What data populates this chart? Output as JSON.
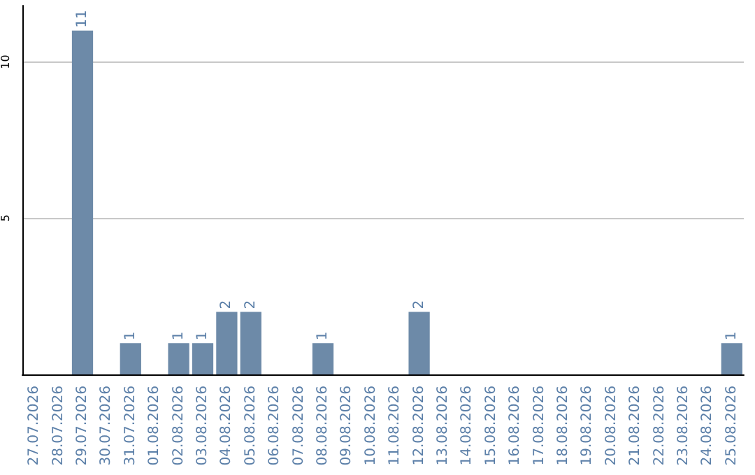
{
  "chart_data": {
    "type": "bar",
    "categories": [
      "27.07.2026",
      "28.07.2026",
      "29.07.2026",
      "30.07.2026",
      "31.07.2026",
      "01.08.2026",
      "02.08.2026",
      "03.08.2026",
      "04.08.2026",
      "05.08.2026",
      "06.08.2026",
      "07.08.2026",
      "08.08.2026",
      "09.08.2026",
      "10.08.2026",
      "11.08.2026",
      "12.08.2026",
      "13.08.2026",
      "14.08.2026",
      "15.08.2026",
      "16.08.2026",
      "17.08.2026",
      "18.08.2026",
      "19.08.2026",
      "20.08.2026",
      "21.08.2026",
      "22.08.2026",
      "23.08.2026",
      "24.08.2026",
      "25.08.2026"
    ],
    "values": [
      0,
      0,
      11,
      0,
      1,
      0,
      1,
      1,
      2,
      2,
      0,
      0,
      1,
      0,
      0,
      0,
      2,
      0,
      0,
      0,
      0,
      0,
      0,
      0,
      0,
      0,
      0,
      0,
      0,
      1
    ],
    "value_labels": [
      null,
      null,
      "11",
      null,
      "1",
      null,
      "1",
      "1",
      "2",
      "2",
      null,
      null,
      "1",
      null,
      null,
      null,
      "2",
      null,
      null,
      null,
      null,
      null,
      null,
      null,
      null,
      null,
      null,
      null,
      null,
      "1"
    ],
    "color": "#6d8aa8",
    "ylim": [
      0,
      11.8
    ],
    "yticks": [
      5,
      10
    ],
    "grid": "y"
  }
}
